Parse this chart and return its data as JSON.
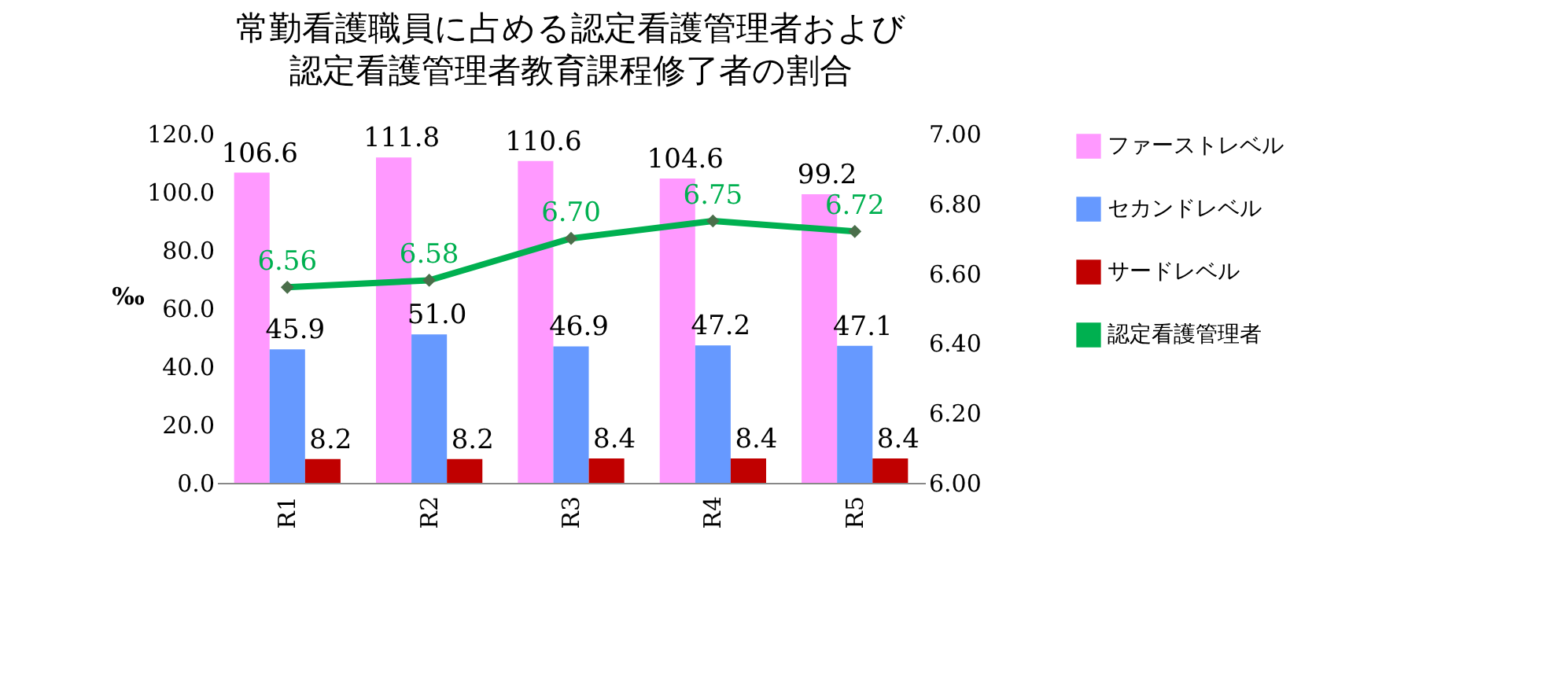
{
  "chart_data": {
    "type": "bar",
    "title": "常勤看護職員に占める認定看護管理者および",
    "subtitle": "認定看護管理者教育課程修了者の割合",
    "categories": [
      "R1",
      "R2",
      "R3",
      "R4",
      "R5"
    ],
    "ylabel": "‰",
    "ylim": [
      0,
      120
    ],
    "yticks": [
      {
        "value": 0,
        "label": "0.0"
      },
      {
        "value": 20,
        "label": "20.0"
      },
      {
        "value": 40,
        "label": "40.0"
      },
      {
        "value": 60,
        "label": "60.0"
      },
      {
        "value": 80,
        "label": "80.0"
      },
      {
        "value": 100,
        "label": "100.0"
      },
      {
        "value": 120,
        "label": "120.0"
      }
    ],
    "y2lim": [
      6.0,
      7.0
    ],
    "y2ticks": [
      {
        "value": 6.0,
        "label": "6.00"
      },
      {
        "value": 6.2,
        "label": "6.20"
      },
      {
        "value": 6.4,
        "label": "6.40"
      },
      {
        "value": 6.6,
        "label": "6.60"
      },
      {
        "value": 6.8,
        "label": "6.80"
      },
      {
        "value": 7.0,
        "label": "7.00"
      }
    ],
    "series": [
      {
        "name": "ファーストレベル",
        "color": "#ff99ff",
        "values": [
          106.6,
          111.8,
          110.6,
          104.6,
          99.2
        ],
        "value_labels": [
          "106.6",
          "111.8",
          "110.6",
          "104.6",
          "99.2"
        ]
      },
      {
        "name": "セカンドレベル",
        "color": "#6699ff",
        "values": [
          45.9,
          51.0,
          46.9,
          47.2,
          47.1
        ],
        "value_labels": [
          "45.9",
          "51.0",
          "46.9",
          "47.2",
          "47.1"
        ]
      },
      {
        "name": "サードレベル",
        "color": "#c00000",
        "values": [
          8.2,
          8.2,
          8.4,
          8.4,
          8.4
        ],
        "value_labels": [
          "8.2",
          "8.2",
          "8.4",
          "8.4",
          "8.4"
        ]
      },
      {
        "name": "認定看護管理者",
        "type": "line",
        "axis": "y2",
        "color": "#00b050",
        "marker": "diamond",
        "line_style": "solid",
        "values": [
          6.56,
          6.58,
          6.7,
          6.75,
          6.72
        ],
        "value_labels": [
          "6.56",
          "6.58",
          "6.70",
          "6.75",
          "6.72"
        ]
      }
    ],
    "legend": "right",
    "grid": false
  }
}
